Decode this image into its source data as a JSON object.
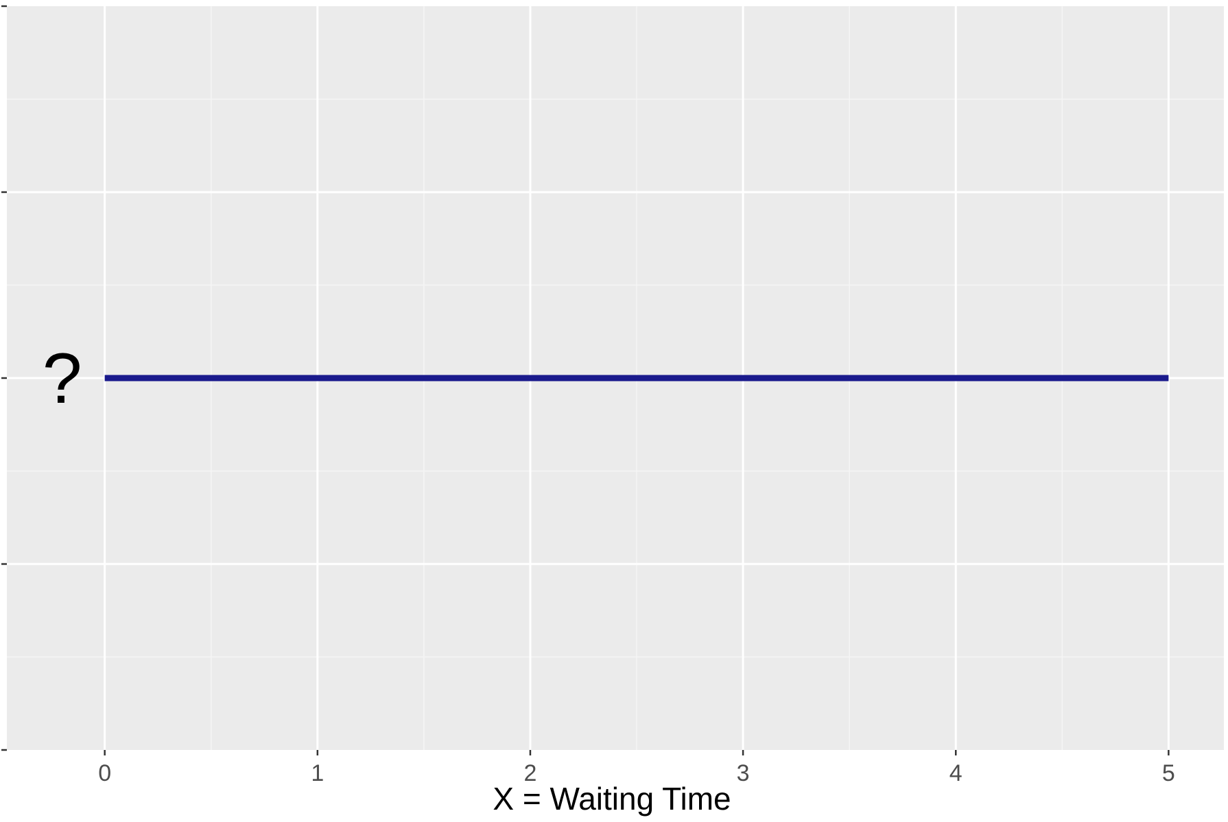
{
  "chart_data": {
    "type": "line",
    "xlabel": "X = Waiting Time",
    "ylabel": "",
    "xlim": [
      -0.46,
      5.26
    ],
    "ylim": [
      0,
      4
    ],
    "x_ticks": [
      0,
      1,
      2,
      3,
      4,
      5
    ],
    "x_tick_labels": [
      "0",
      "1",
      "2",
      "3",
      "4",
      "5"
    ],
    "y_ticks": [
      0,
      1,
      2,
      3,
      4
    ],
    "y_tick_labels": [
      "",
      "",
      "",
      "",
      ""
    ],
    "grid": true,
    "series": [
      {
        "x": [
          0,
          5
        ],
        "y": [
          2,
          2
        ],
        "color": "#1a1a8c"
      }
    ],
    "annotations": [
      {
        "text": "?",
        "x": -0.2,
        "y": 2
      }
    ],
    "colors": {
      "panel_background": "#ebebeb",
      "grid_major": "#ffffff",
      "grid_minor": "#f5f5f5",
      "tick_mark": "#333333"
    }
  }
}
